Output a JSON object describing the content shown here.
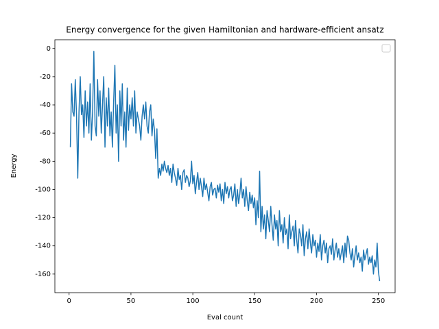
{
  "chart_data": {
    "type": "line",
    "title": "Energy convergence for the given Hamiltonian and hardware-efficient ansatz",
    "xlabel": "Eval count",
    "ylabel": "Energy",
    "xlim": [
      -11.5,
      263.5
    ],
    "ylim": [
      -173.2,
      6.2
    ],
    "xticks": [
      0,
      50,
      100,
      150,
      200,
      250
    ],
    "yticks": [
      -160,
      -140,
      -120,
      -100,
      -80,
      -60,
      -40,
      -20,
      0
    ],
    "legend": "upper right",
    "series": [
      {
        "color": "#1f77b4",
        "x": [
          1,
          2,
          3,
          4,
          5,
          6,
          7,
          8,
          9,
          10,
          11,
          12,
          13,
          14,
          15,
          16,
          17,
          18,
          19,
          20,
          21,
          22,
          23,
          24,
          25,
          26,
          27,
          28,
          29,
          30,
          31,
          32,
          33,
          34,
          35,
          36,
          37,
          38,
          39,
          40,
          41,
          42,
          43,
          44,
          45,
          46,
          47,
          48,
          49,
          50,
          51,
          52,
          53,
          54,
          55,
          56,
          57,
          58,
          59,
          60,
          61,
          62,
          63,
          64,
          65,
          66,
          67,
          68,
          69,
          70,
          71,
          72,
          73,
          74,
          75,
          76,
          77,
          78,
          79,
          80,
          81,
          82,
          83,
          84,
          85,
          86,
          87,
          88,
          89,
          90,
          91,
          92,
          93,
          94,
          95,
          96,
          97,
          98,
          99,
          100,
          101,
          102,
          103,
          104,
          105,
          106,
          107,
          108,
          109,
          110,
          111,
          112,
          113,
          114,
          115,
          116,
          117,
          118,
          119,
          120,
          121,
          122,
          123,
          124,
          125,
          126,
          127,
          128,
          129,
          130,
          131,
          132,
          133,
          134,
          135,
          136,
          137,
          138,
          139,
          140,
          141,
          142,
          143,
          144,
          145,
          146,
          147,
          148,
          149,
          150,
          151,
          152,
          153,
          154,
          155,
          156,
          157,
          158,
          159,
          160,
          161,
          162,
          163,
          164,
          165,
          166,
          167,
          168,
          169,
          170,
          171,
          172,
          173,
          174,
          175,
          176,
          177,
          178,
          179,
          180,
          181,
          182,
          183,
          184,
          185,
          186,
          187,
          188,
          189,
          190,
          191,
          192,
          193,
          194,
          195,
          196,
          197,
          198,
          199,
          200,
          201,
          202,
          203,
          204,
          205,
          206,
          207,
          208,
          209,
          210,
          211,
          212,
          213,
          214,
          215,
          216,
          217,
          218,
          219,
          220,
          221,
          222,
          223,
          224,
          225,
          226,
          227,
          228,
          229,
          230,
          231,
          232,
          233,
          234,
          235,
          236,
          237,
          238,
          239,
          240,
          241,
          242,
          243,
          244,
          245,
          246,
          247,
          248,
          249,
          250,
          251
        ],
        "values": [
          -70,
          -25,
          -45,
          -48,
          -22,
          -47,
          -92,
          -45,
          -20,
          -47,
          -40,
          -63,
          -30,
          -55,
          -38,
          -60,
          -25,
          -65,
          -45,
          -2,
          -55,
          -62,
          -22,
          -48,
          -30,
          -60,
          -40,
          -20,
          -70,
          -35,
          -55,
          -28,
          -62,
          -45,
          -70,
          -38,
          -12,
          -60,
          -40,
          -80,
          -30,
          -55,
          -25,
          -65,
          -45,
          -70,
          -28,
          -58,
          -40,
          -50,
          -35,
          -55,
          -30,
          -60,
          -45,
          -50,
          -55,
          -65,
          -48,
          -40,
          -50,
          -38,
          -55,
          -60,
          -45,
          -40,
          -62,
          -50,
          -58,
          -78,
          -57,
          -92,
          -85,
          -90,
          -82,
          -87,
          -80,
          -85,
          -88,
          -83,
          -90,
          -85,
          -95,
          -82,
          -88,
          -92,
          -97,
          -85,
          -93,
          -90,
          -100,
          -88,
          -86,
          -95,
          -90,
          -92,
          -98,
          -94,
          -80,
          -96,
          -90,
          -103,
          -95,
          -88,
          -100,
          -92,
          -98,
          -105,
          -92,
          -100,
          -96,
          -102,
          -108,
          -98,
          -95,
          -104,
          -100,
          -99,
          -106,
          -97,
          -102,
          -96,
          -108,
          -100,
          -110,
          -95,
          -103,
          -98,
          -106,
          -100,
          -98,
          -108,
          -104,
          -96,
          -112,
          -100,
          -110,
          -103,
          -92,
          -106,
          -100,
          -112,
          -98,
          -108,
          -115,
          -102,
          -110,
          -104,
          -113,
          -106,
          -125,
          -108,
          -120,
          -87,
          -130,
          -112,
          -128,
          -118,
          -135,
          -115,
          -122,
          -130,
          -112,
          -125,
          -136,
          -118,
          -128,
          -122,
          -140,
          -115,
          -130,
          -125,
          -138,
          -120,
          -132,
          -128,
          -142,
          -118,
          -135,
          -130,
          -126,
          -140,
          -122,
          -136,
          -145,
          -128,
          -132,
          -140,
          -125,
          -147,
          -135,
          -130,
          -142,
          -128,
          -138,
          -145,
          -132,
          -140,
          -136,
          -148,
          -138,
          -144,
          -132,
          -150,
          -140,
          -136,
          -145,
          -138,
          -152,
          -142,
          -140,
          -146,
          -135,
          -150,
          -143,
          -138,
          -148,
          -142,
          -150,
          -145,
          -140,
          -152,
          -138,
          -148,
          -133,
          -136,
          -145,
          -150,
          -142,
          -155,
          -147,
          -140,
          -150,
          -145,
          -152,
          -148,
          -158,
          -143,
          -150,
          -146,
          -142,
          -153,
          -148,
          -152,
          -147,
          -160,
          -150,
          -155,
          -138,
          -158,
          -165
        ]
      }
    ]
  }
}
